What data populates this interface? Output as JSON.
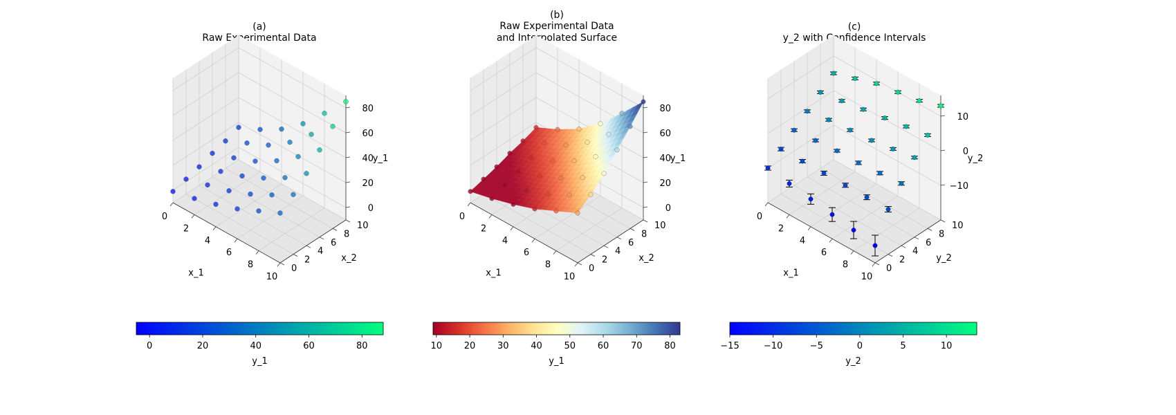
{
  "chart_data": [
    {
      "type": "scatter3d",
      "panel_label": "(a)",
      "title": "Raw Experimental Data",
      "xlabel": "x_1",
      "ylabel": "x_2",
      "zlabel": "y_1",
      "xlim": [
        0,
        10
      ],
      "ylim": [
        0,
        10
      ],
      "zlim": [
        -10,
        90
      ],
      "x_ticks": [
        "0",
        "2",
        "4",
        "6",
        "8",
        "10"
      ],
      "y_ticks": [
        "0",
        "2",
        "4",
        "6",
        "8",
        "10"
      ],
      "z_ticks": [
        "0",
        "20",
        "40",
        "60",
        "80"
      ],
      "grid": true,
      "colormap": "winter",
      "colorbar": {
        "label": "y_1",
        "range": [
          -5,
          88
        ],
        "ticks": [
          "0",
          "20",
          "40",
          "60",
          "80"
        ]
      },
      "x_values": [
        0,
        2,
        4,
        6,
        8,
        10
      ],
      "y_values": [
        0,
        2,
        4,
        6,
        8,
        10
      ],
      "z_grid": [
        [
          -1,
          3,
          8,
          14,
          22,
          30
        ],
        [
          2,
          7,
          12,
          19,
          28,
          38
        ],
        [
          5,
          11,
          17,
          25,
          35,
          48
        ],
        [
          9,
          15,
          22,
          32,
          45,
          60
        ],
        [
          12,
          20,
          28,
          40,
          56,
          72
        ],
        [
          16,
          24,
          34,
          48,
          66,
          85
        ]
      ]
    },
    {
      "type": "surface3d",
      "panel_label": "(b)",
      "title": "Raw Experimental Data\nand Interpolated Surface",
      "xlabel": "x_1",
      "ylabel": "x_2",
      "zlabel": "y_1",
      "xlim": [
        0,
        10
      ],
      "ylim": [
        0,
        10
      ],
      "zlim": [
        -10,
        90
      ],
      "x_ticks": [
        "0",
        "2",
        "4",
        "6",
        "8",
        "10"
      ],
      "y_ticks": [
        "0",
        "2",
        "4",
        "6",
        "8",
        "10"
      ],
      "z_ticks": [
        "0",
        "20",
        "40",
        "60",
        "80"
      ],
      "grid": true,
      "colormap": "RdYlBu",
      "colorbar": {
        "label": "y_1",
        "range": [
          9,
          83
        ],
        "ticks": [
          "10",
          "20",
          "30",
          "40",
          "50",
          "60",
          "70",
          "80"
        ]
      },
      "x_values": [
        0,
        2,
        4,
        6,
        8,
        10
      ],
      "y_values": [
        0,
        2,
        4,
        6,
        8,
        10
      ],
      "z_grid": [
        [
          -1,
          3,
          8,
          14,
          22,
          30
        ],
        [
          2,
          7,
          12,
          19,
          28,
          38
        ],
        [
          5,
          11,
          17,
          25,
          35,
          48
        ],
        [
          9,
          15,
          22,
          32,
          45,
          60
        ],
        [
          12,
          20,
          28,
          40,
          56,
          72
        ],
        [
          16,
          24,
          34,
          48,
          66,
          85
        ]
      ]
    },
    {
      "type": "errorbar3d",
      "panel_label": "(c)",
      "title": "y_2 with Confidence Intervals",
      "xlabel": "x_1",
      "ylabel": "y_2",
      "zlabel": "y_2",
      "xlim": [
        0,
        10
      ],
      "ylim": [
        0,
        10
      ],
      "zlim": [
        -20,
        16
      ],
      "x_ticks": [
        "0",
        "2",
        "4",
        "6",
        "8",
        "10"
      ],
      "y_ticks": [
        "0",
        "2",
        "4",
        "6",
        "8",
        "10"
      ],
      "z_ticks": [
        "−10",
        "0",
        "10"
      ],
      "grid": true,
      "colormap": "winter",
      "colorbar": {
        "label": "y_2",
        "range": [
          -15,
          13.5
        ],
        "ticks": [
          "−15",
          "−10",
          "−5",
          "0",
          "5",
          "10"
        ]
      },
      "x_values": [
        0,
        2,
        4,
        6,
        8,
        10
      ],
      "y_values": [
        0,
        2,
        4,
        6,
        8,
        10
      ],
      "z_grid": [
        [
          -10,
          -11,
          -12,
          -13,
          -14,
          -15
        ],
        [
          -7,
          -7,
          -7,
          -7,
          -7,
          -7
        ],
        [
          -4,
          -3.5,
          -3,
          -3,
          -2.5,
          -2
        ],
        [
          -1,
          0,
          0.5,
          1,
          2,
          3
        ],
        [
          2,
          3,
          4,
          5,
          6,
          7
        ],
        [
          5,
          7,
          9,
          10,
          11,
          13
        ]
      ],
      "error_grid": [
        [
          0.6,
          1,
          1.5,
          2,
          2.5,
          3
        ],
        [
          0.5,
          0.5,
          0.6,
          0.6,
          0.7,
          0.8
        ],
        [
          0.4,
          0.4,
          0.4,
          0.5,
          0.5,
          0.5
        ],
        [
          0.4,
          0.4,
          0.4,
          0.4,
          0.4,
          0.4
        ],
        [
          0.4,
          0.4,
          0.4,
          0.4,
          0.4,
          0.4
        ],
        [
          0.4,
          0.4,
          0.4,
          0.4,
          0.4,
          0.4
        ]
      ]
    }
  ]
}
